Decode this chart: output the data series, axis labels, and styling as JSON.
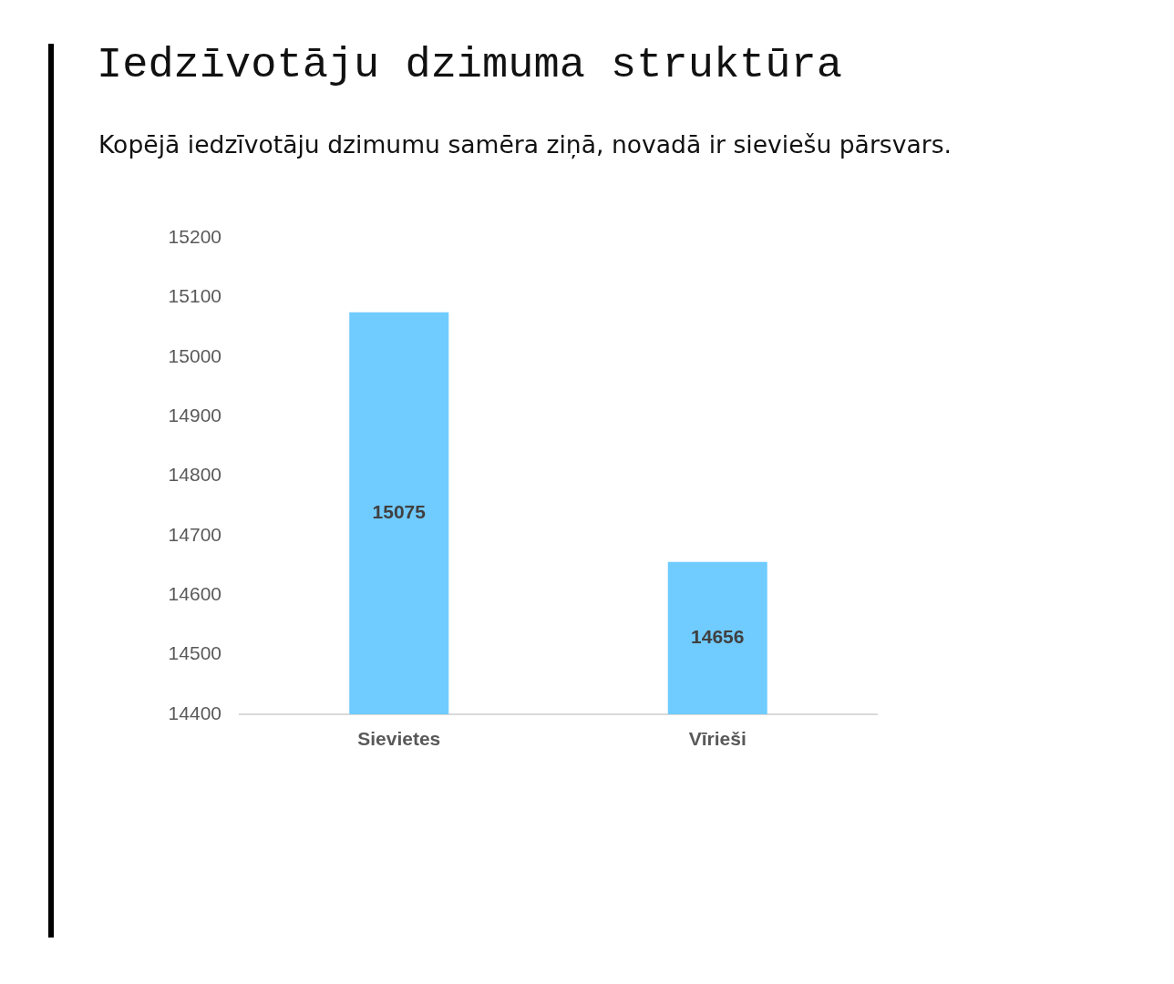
{
  "chart_data": {
    "type": "bar",
    "title": "Iedzīvotāju dzimuma struktūra",
    "subtitle": "Kopējā iedzīvotāju dzimumu samēra ziņā, novadā ir sieviešu pārsvars.",
    "categories": [
      "Sievietes",
      "Vīrieši"
    ],
    "values": [
      15075,
      14656
    ],
    "color": "#70cbff",
    "ylim": [
      14400,
      15200
    ],
    "yticks": [
      14400,
      14500,
      14600,
      14700,
      14800,
      14900,
      15000,
      15100,
      15200
    ],
    "grid": false,
    "data_labels": true
  }
}
